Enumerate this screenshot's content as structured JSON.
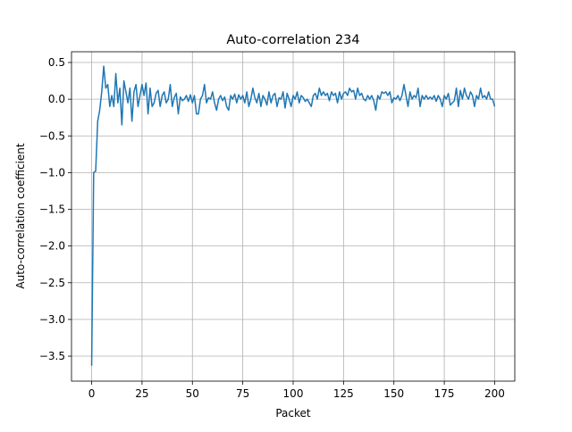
{
  "chart_data": {
    "type": "line",
    "title": "Auto-correlation 234",
    "xlabel": "Packet",
    "ylabel": "Auto-correlation coefficient",
    "color": "#1f77b4",
    "grid": true,
    "xlim": [
      -10,
      210
    ],
    "ylim": [
      -3.84,
      0.646
    ],
    "xticks": [
      0,
      25,
      50,
      75,
      100,
      125,
      150,
      175,
      200
    ],
    "yticks": [
      0.5,
      {
        "value": 0,
        "label": "0.0"
      },
      {
        "value": -0.5,
        "label": "−0.5"
      },
      {
        "value": -1,
        "label": "−1.0"
      },
      {
        "value": -1.5,
        "label": "−1.5"
      },
      {
        "value": -2,
        "label": "−2.0"
      },
      {
        "value": -2.5,
        "label": "−2.5"
      },
      {
        "value": -3,
        "label": "−3.0"
      },
      {
        "value": -3.5,
        "label": "−3.5"
      }
    ],
    "x": [
      0,
      1,
      2,
      3,
      4,
      5,
      6,
      7,
      8,
      9,
      10,
      11,
      12,
      13,
      14,
      15,
      16,
      17,
      18,
      19,
      20,
      21,
      22,
      23,
      24,
      25,
      26,
      27,
      28,
      29,
      30,
      31,
      32,
      33,
      34,
      35,
      36,
      37,
      38,
      39,
      40,
      41,
      42,
      43,
      44,
      45,
      46,
      47,
      48,
      49,
      50,
      51,
      52,
      53,
      54,
      55,
      56,
      57,
      58,
      59,
      60,
      61,
      62,
      63,
      64,
      65,
      66,
      67,
      68,
      69,
      70,
      71,
      72,
      73,
      74,
      75,
      76,
      77,
      78,
      79,
      80,
      81,
      82,
      83,
      84,
      85,
      86,
      87,
      88,
      89,
      90,
      91,
      92,
      93,
      94,
      95,
      96,
      97,
      98,
      99,
      100,
      101,
      102,
      103,
      104,
      105,
      106,
      107,
      108,
      109,
      110,
      111,
      112,
      113,
      114,
      115,
      116,
      117,
      118,
      119,
      120,
      121,
      122,
      123,
      124,
      125,
      126,
      127,
      128,
      129,
      130,
      131,
      132,
      133,
      134,
      135,
      136,
      137,
      138,
      139,
      140,
      141,
      142,
      143,
      144,
      145,
      146,
      147,
      148,
      149,
      150,
      151,
      152,
      153,
      154,
      155,
      156,
      157,
      158,
      159,
      160,
      161,
      162,
      163,
      164,
      165,
      166,
      167,
      168,
      169,
      170,
      171,
      172,
      173,
      174,
      175,
      176,
      177,
      178,
      179,
      180,
      181,
      182,
      183,
      184,
      185,
      186,
      187,
      188,
      189,
      190,
      191,
      192,
      193,
      194,
      195,
      196,
      197,
      198,
      199,
      200
    ],
    "values": [
      -3.63,
      -1.0,
      -0.98,
      -0.3,
      -0.15,
      0.1,
      0.45,
      0.15,
      0.2,
      -0.1,
      0.05,
      -0.1,
      0.35,
      -0.05,
      0.15,
      -0.35,
      0.25,
      0.1,
      -0.05,
      0.15,
      -0.3,
      0.1,
      0.2,
      -0.1,
      0.05,
      0.2,
      0.05,
      0.22,
      -0.2,
      0.15,
      -0.1,
      -0.05,
      0.08,
      0.12,
      -0.1,
      0.05,
      0.1,
      -0.05,
      0.0,
      0.2,
      -0.1,
      0.02,
      0.08,
      -0.2,
      0.03,
      -0.02,
      0.0,
      0.05,
      -0.03,
      0.06,
      -0.05,
      0.05,
      -0.2,
      -0.2,
      0.0,
      0.05,
      0.2,
      -0.05,
      0.02,
      0.0,
      0.1,
      -0.05,
      -0.15,
      0.0,
      0.05,
      -0.02,
      0.03,
      -0.1,
      -0.15,
      0.05,
      0.0,
      0.07,
      -0.05,
      0.06,
      0.0,
      0.05,
      -0.05,
      0.1,
      -0.1,
      0.0,
      0.15,
      0.02,
      -0.05,
      0.08,
      -0.1,
      0.05,
      0.0,
      -0.08,
      0.1,
      -0.05,
      0.05,
      0.08,
      -0.1,
      0.02,
      0.0,
      0.1,
      -0.12,
      0.08,
      0.0,
      -0.1,
      0.05,
      0.0,
      0.1,
      -0.05,
      0.05,
      0.02,
      -0.03,
      0.0,
      -0.05,
      -0.1,
      0.05,
      0.08,
      0.0,
      0.15,
      0.05,
      0.1,
      0.05,
      0.08,
      -0.02,
      0.1,
      0.05,
      0.08,
      -0.05,
      0.1,
      0.0,
      0.08,
      0.1,
      0.05,
      0.15,
      0.1,
      0.12,
      0.0,
      0.15,
      0.05,
      0.08,
      0.0,
      -0.02,
      0.05,
      0.0,
      0.05,
      -0.02,
      -0.15,
      0.05,
      0.0,
      0.1,
      0.08,
      0.1,
      0.05,
      0.1,
      -0.05,
      0.02,
      0.0,
      0.05,
      -0.02,
      0.05,
      0.2,
      0.05,
      -0.1,
      0.1,
      0.0,
      0.05,
      0.02,
      0.15,
      -0.1,
      0.05,
      0.0,
      0.05,
      0.0,
      0.03,
      0.0,
      0.05,
      -0.03,
      0.05,
      0.0,
      -0.1,
      0.05,
      0.0,
      0.08,
      -0.08,
      -0.05,
      -0.02,
      0.15,
      -0.1,
      0.12,
      0.0,
      0.15,
      0.05,
      0.0,
      0.1,
      0.05,
      -0.1,
      0.05,
      0.0,
      0.15,
      0.02,
      0.05,
      0.0,
      0.1,
      0.0,
      0.0,
      -0.1
    ]
  }
}
